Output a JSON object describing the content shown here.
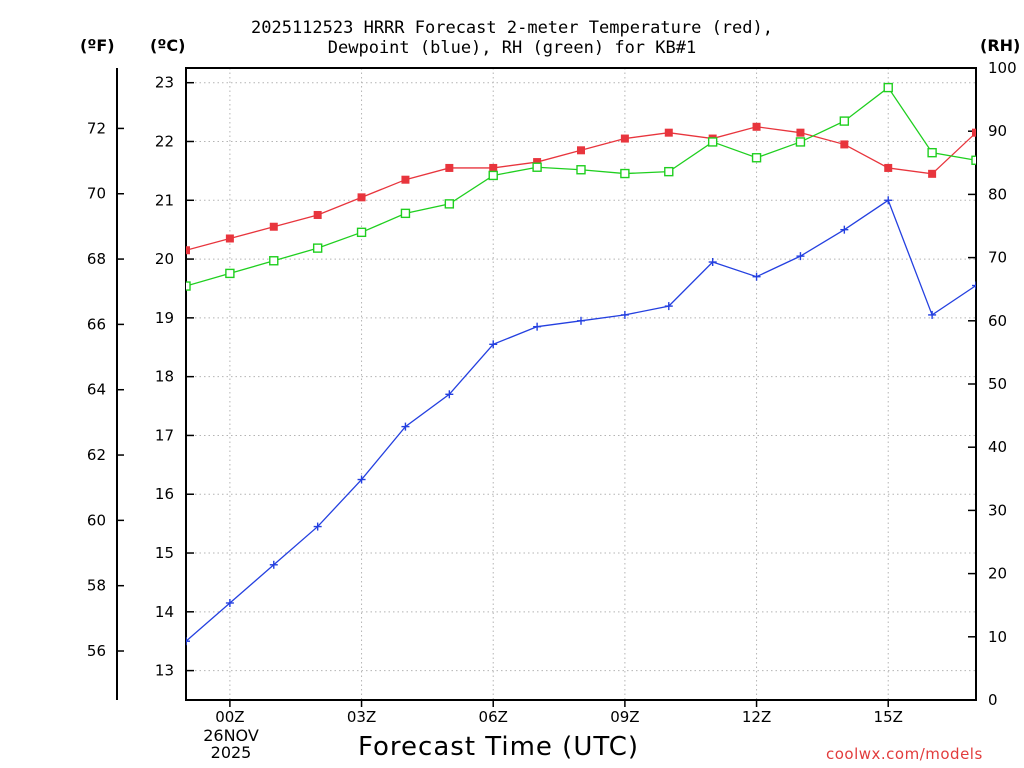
{
  "title_line1": "2025112523 HRRR Forecast 2-meter Temperature (red),",
  "title_line2": "Dewpoint (blue), RH (green) for KB#1",
  "units": {
    "fahrenheit": "(ºF)",
    "celsius": "(ºC)",
    "rh": "(RH)"
  },
  "xlabel": "Forecast Time (UTC)",
  "date_label": {
    "day": "26NOV",
    "year": "2025"
  },
  "watermark": "coolwx.com/models",
  "colors": {
    "temperature": "#e8353d",
    "dewpoint": "#2440e0",
    "rh": "#1fcf1f",
    "grid": "#b4b4b4",
    "watermark": "#e23c3c"
  },
  "chart_data": {
    "type": "line",
    "title": "2025112523 HRRR Forecast 2-meter Temperature (red), Dewpoint (blue), RH (green) for KB#1",
    "xlabel": "Forecast Time (UTC)",
    "x": [
      -1,
      0,
      1,
      2,
      3,
      4,
      5,
      6,
      7,
      8,
      9,
      10,
      11,
      12,
      13,
      14,
      15,
      16,
      17
    ],
    "xlim": [
      -1,
      17
    ],
    "x_ticks": [
      {
        "value": 0,
        "label": "00Z"
      },
      {
        "value": 3,
        "label": "03Z"
      },
      {
        "value": 6,
        "label": "06Z"
      },
      {
        "value": 9,
        "label": "09Z"
      },
      {
        "value": 12,
        "label": "12Z"
      },
      {
        "value": 15,
        "label": "15Z"
      }
    ],
    "ylim_celsius": [
      12.5,
      23.25
    ],
    "y_ticks_celsius": [
      "13",
      "14",
      "15",
      "16",
      "17",
      "18",
      "19",
      "20",
      "21",
      "22",
      "23"
    ],
    "y_ticks_fahrenheit": [
      "56",
      "58",
      "60",
      "62",
      "64",
      "66",
      "68",
      "70",
      "72"
    ],
    "ylim_rh": [
      0,
      100
    ],
    "y_ticks_rh": [
      "0",
      "10",
      "20",
      "30",
      "40",
      "50",
      "60",
      "70",
      "80",
      "90",
      "100"
    ],
    "grid": true,
    "series": [
      {
        "name": "Temperature",
        "axis": "celsius",
        "marker": "filled-square",
        "values": [
          20.15,
          20.35,
          20.55,
          20.75,
          21.05,
          21.35,
          21.55,
          21.55,
          21.65,
          21.85,
          22.05,
          22.15,
          22.05,
          22.25,
          22.15,
          21.95,
          21.55,
          21.45,
          22.15
        ]
      },
      {
        "name": "Dewpoint",
        "axis": "celsius",
        "marker": "plus",
        "values": [
          13.5,
          14.15,
          14.8,
          15.45,
          16.25,
          17.15,
          17.7,
          18.55,
          18.85,
          18.95,
          19.05,
          19.2,
          19.95,
          19.7,
          20.05,
          20.5,
          21.0,
          19.05,
          19.55
        ]
      },
      {
        "name": "RH",
        "axis": "rh",
        "marker": "open-square",
        "values": [
          65.5,
          67.5,
          69.5,
          71.5,
          74.0,
          77.0,
          78.5,
          83.0,
          84.3,
          83.9,
          83.3,
          83.6,
          88.3,
          85.8,
          88.3,
          91.6,
          96.9,
          86.6,
          85.4
        ]
      }
    ]
  }
}
